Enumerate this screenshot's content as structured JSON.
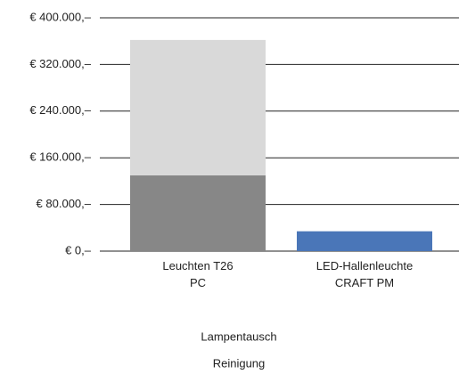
{
  "chart_data": {
    "type": "stacked_bar",
    "categories": [
      "Leuchten T26\nPC",
      "LED-Hallenleuchte\nCRAFT PM"
    ],
    "series": [
      {
        "name": "Lampentausch",
        "color": [
          "#878787",
          "#4a76b8"
        ],
        "values": [
          130000,
          34000
        ]
      },
      {
        "name": "Reinigung",
        "color": [
          "#d9d9d9",
          "#d9d9d9"
        ],
        "values": [
          232000,
          0
        ]
      }
    ],
    "ylim": [
      0,
      400000
    ],
    "yticks": [
      {
        "value": 0,
        "label": "€ 0,–"
      },
      {
        "value": 80000,
        "label": "€ 80.000,–"
      },
      {
        "value": 160000,
        "label": "€ 160.000,–"
      },
      {
        "value": 240000,
        "label": "€ 240.000,–"
      },
      {
        "value": 320000,
        "label": "€ 320.000,–"
      },
      {
        "value": 400000,
        "label": "€ 400.000,–"
      }
    ],
    "grid": true
  }
}
